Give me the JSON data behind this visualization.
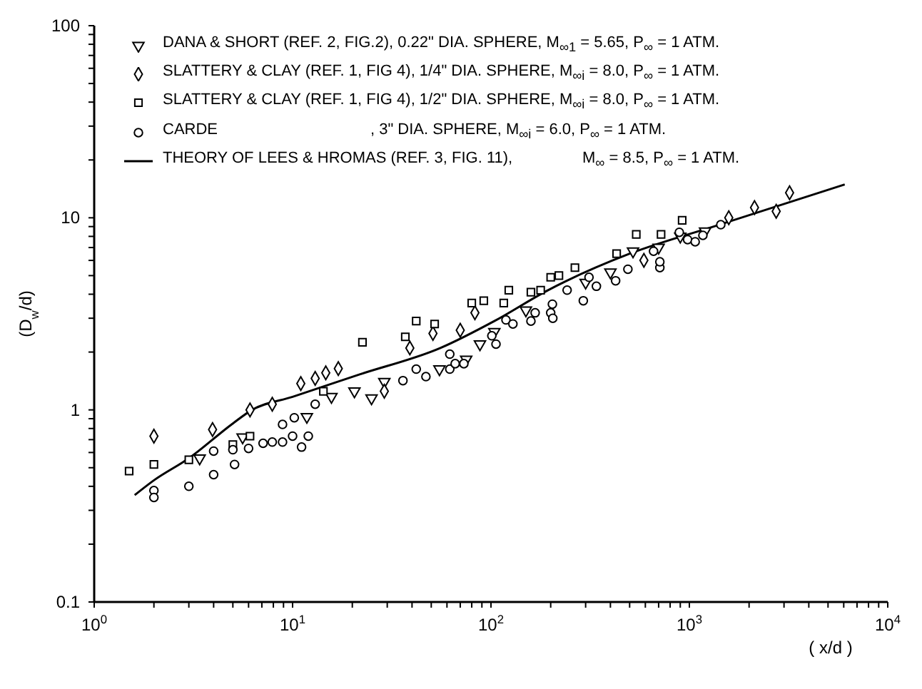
{
  "chart_data": {
    "type": "scatter",
    "xlabel": "( x/d )",
    "ylabel": "(D$_{w}$/d)",
    "log": "xy",
    "grid": false,
    "legend": "top left",
    "xlim": [
      1,
      10000
    ],
    "xticks": [
      {
        "value": 1,
        "label": "10$^{0}$"
      },
      {
        "value": 2,
        "label": null
      },
      {
        "value": 3,
        "label": null
      },
      {
        "value": 4,
        "label": null
      },
      {
        "value": 5,
        "label": null
      },
      {
        "value": 6,
        "label": null
      },
      {
        "value": 7,
        "label": null
      },
      {
        "value": 8,
        "label": null
      },
      {
        "value": 9,
        "label": null
      },
      {
        "value": 10,
        "label": "10$^{1}$"
      },
      {
        "value": 20,
        "label": null
      },
      {
        "value": 30,
        "label": null
      },
      {
        "value": 40,
        "label": null
      },
      {
        "value": 50,
        "label": null
      },
      {
        "value": 60,
        "label": null
      },
      {
        "value": 70,
        "label": null
      },
      {
        "value": 80,
        "label": null
      },
      {
        "value": 90,
        "label": null
      },
      {
        "value": 100,
        "label": "10$^{2}$"
      },
      {
        "value": 200,
        "label": null
      },
      {
        "value": 300,
        "label": null
      },
      {
        "value": 400,
        "label": null
      },
      {
        "value": 500,
        "label": null
      },
      {
        "value": 600,
        "label": null
      },
      {
        "value": 700,
        "label": null
      },
      {
        "value": 800,
        "label": null
      },
      {
        "value": 900,
        "label": null
      },
      {
        "value": 1000,
        "label": "10$^{3}$"
      },
      {
        "value": 2000,
        "label": null
      },
      {
        "value": 3000,
        "label": null
      },
      {
        "value": 4000,
        "label": null
      },
      {
        "value": 5000,
        "label": null
      },
      {
        "value": 6000,
        "label": null
      },
      {
        "value": 7000,
        "label": null
      },
      {
        "value": 8000,
        "label": null
      },
      {
        "value": 9000,
        "label": null
      },
      {
        "value": 10000,
        "label": "10$^{4}$"
      }
    ],
    "ylim": [
      0.1,
      100
    ],
    "yticks": [
      0.1,
      {
        "value": 0.2,
        "label": null
      },
      {
        "value": 0.3,
        "label": null
      },
      {
        "value": 0.4,
        "label": null
      },
      {
        "value": 0.5,
        "label": null
      },
      {
        "value": 0.6,
        "label": null
      },
      {
        "value": 0.7,
        "label": null
      },
      {
        "value": 0.8,
        "label": null
      },
      {
        "value": 0.9,
        "label": null
      },
      1,
      {
        "value": 2,
        "label": null
      },
      {
        "value": 3,
        "label": null
      },
      {
        "value": 4,
        "label": null
      },
      {
        "value": 5,
        "label": null
      },
      {
        "value": 6,
        "label": null
      },
      {
        "value": 7,
        "label": null
      },
      {
        "value": 8,
        "label": null
      },
      {
        "value": 9,
        "label": null
      },
      10,
      {
        "value": 20,
        "label": null
      },
      {
        "value": 30,
        "label": null
      },
      {
        "value": 40,
        "label": null
      },
      {
        "value": 50,
        "label": null
      },
      {
        "value": 60,
        "label": null
      },
      {
        "value": 70,
        "label": null
      },
      {
        "value": 80,
        "label": null
      },
      {
        "value": 90,
        "label": null
      },
      100
    ],
    "series": [
      {
        "name": "DANA & SHORT (REF. 2, FIG.2), 0.22\" DIA. SPHERE, M$_{∞1}$ = 5.65, P$_{∞}$ = 1 ATM.",
        "marker": "triangle",
        "color": "#000000",
        "x": [
          3.4,
          5.6,
          11.8,
          15.7,
          20.5,
          25,
          29,
          55,
          75,
          88,
          104,
          150,
          300,
          400,
          520,
          700,
          900,
          1200
        ],
        "values": [
          0.56,
          0.72,
          0.92,
          1.17,
          1.25,
          1.15,
          1.4,
          1.63,
          1.83,
          2.2,
          2.55,
          3.3,
          4.6,
          5.2,
          6.7,
          7,
          8,
          8.5
        ]
      },
      {
        "name": "SLATTERY & CLAY (REF. 1, FIG 4), 1/4\" DIA. SPHERE, M$_{∞i}$ = 8.0, P$_{∞}$ = 1 ATM.",
        "marker": "diamond",
        "color": "#000000",
        "x": [
          2,
          3.95,
          6.1,
          7.9,
          11,
          13,
          14.7,
          17,
          29,
          39,
          51,
          70,
          83,
          590,
          1580,
          2130,
          2740,
          3200
        ],
        "values": [
          0.73,
          0.79,
          1.0,
          1.07,
          1.37,
          1.46,
          1.56,
          1.64,
          1.25,
          2.1,
          2.5,
          2.6,
          3.2,
          6.0,
          10,
          11.3,
          10.8,
          13.5
        ]
      },
      {
        "name": "SLATTERY & CLAY (REF. 1, FIG 4), 1/2\" DIA. SPHERE, M$_{∞i}$ = 8.0, P$_{∞}$ = 1 ATM.",
        "marker": "square",
        "color": "#000000",
        "x": [
          1.5,
          2,
          3,
          5,
          6.1,
          14.3,
          22.5,
          37,
          42,
          52,
          80,
          92,
          116,
          123,
          159,
          178,
          200,
          220,
          265,
          430,
          540,
          720,
          920
        ],
        "values": [
          0.48,
          0.52,
          0.55,
          0.66,
          0.73,
          1.25,
          2.25,
          2.4,
          2.9,
          2.8,
          3.6,
          3.7,
          3.6,
          4.2,
          4.1,
          4.2,
          4.9,
          5.0,
          5.5,
          6.5,
          8.2,
          8.2,
          9.7
        ]
      },
      {
        "name": "CARDE                                   , 3\" DIA. SPHERE, M$_{∞i}$ = 6.0, P$_{∞}$ = 1 ATM.",
        "marker": "circle",
        "color": "#000000",
        "x": [
          2,
          2,
          3,
          4,
          5.1,
          4,
          5,
          6,
          7.1,
          7.9,
          8.9,
          10,
          11.1,
          12,
          8.9,
          10.2,
          13,
          36,
          42,
          47,
          62,
          62,
          66,
          73,
          101,
          106,
          119,
          129,
          159,
          167,
          200,
          204,
          242,
          292,
          312,
          205,
          340,
          425,
          490,
          660,
          710,
          710,
          890,
          980,
          1070,
          1170,
          1440
        ],
        "values": [
          0.38,
          0.35,
          0.4,
          0.46,
          0.52,
          0.61,
          0.62,
          0.63,
          0.67,
          0.68,
          0.68,
          0.73,
          0.64,
          0.73,
          0.84,
          0.91,
          1.07,
          1.42,
          1.63,
          1.49,
          1.63,
          1.95,
          1.74,
          1.74,
          2.43,
          2.2,
          2.94,
          2.8,
          2.9,
          3.2,
          3.2,
          3.55,
          4.2,
          3.7,
          4.9,
          3.0,
          4.4,
          4.7,
          5.4,
          6.7,
          5.5,
          5.9,
          8.4,
          7.7,
          7.5,
          8.1,
          9.2
        ]
      },
      {
        "name": "THEORY OF LEES & HROMAS (REF. 3, FIG. 11),                M$_{∞}$ = 8.5, P$_{∞}$ = 1 ATM.",
        "type": "line",
        "marker": "none",
        "line_style": "solid",
        "color": "#000000",
        "x": [
          1.6,
          2,
          3,
          5,
          6.25,
          10,
          21.8,
          55.6,
          104,
          194,
          238,
          500,
          1416,
          6070
        ],
        "values": [
          0.36,
          0.43,
          0.56,
          0.85,
          1.0,
          1.17,
          1.53,
          2.1,
          2.9,
          4.2,
          4.67,
          6.5,
          9.2,
          14.9
        ]
      }
    ]
  }
}
